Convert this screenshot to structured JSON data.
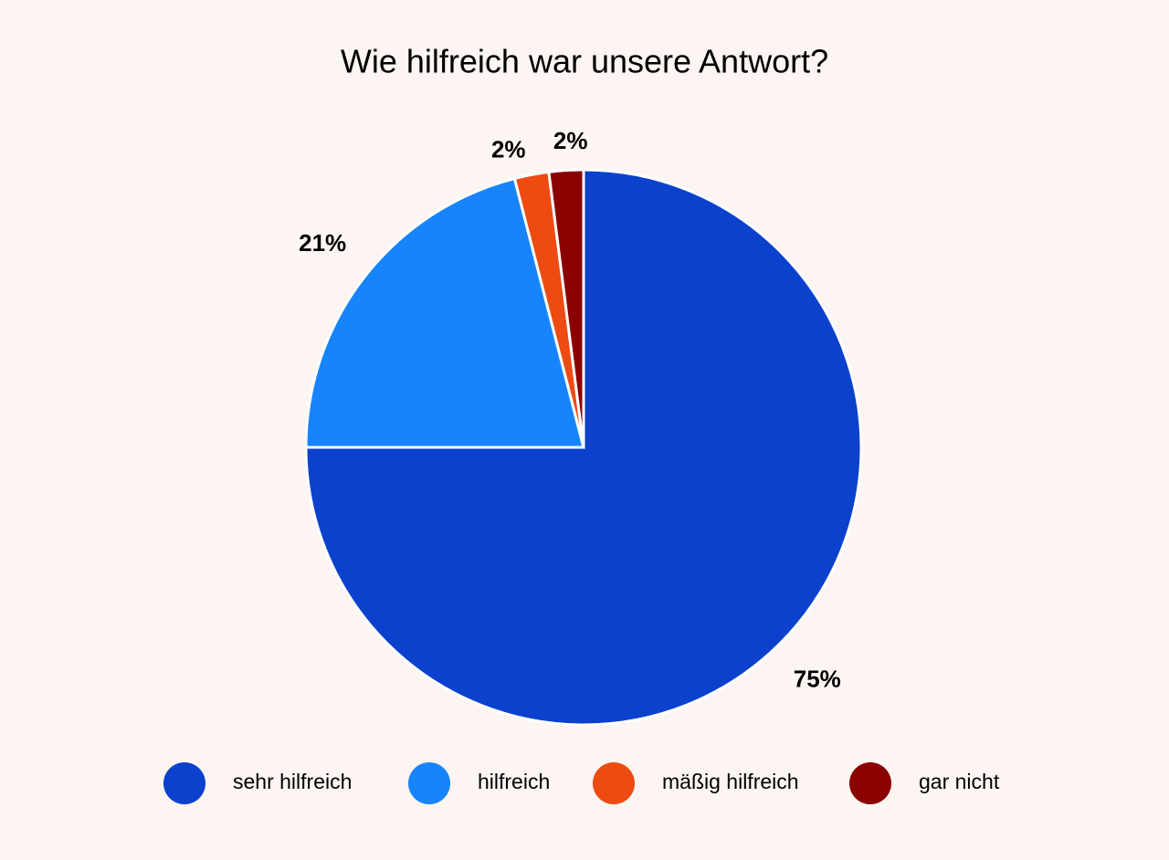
{
  "chart_data": {
    "type": "pie",
    "title": "Wie hilfreich war unsere Antwort?",
    "categories": [
      "sehr hilfreich",
      "hilfreich",
      "mäßig hilfreich",
      "gar nicht"
    ],
    "values": [
      75,
      21,
      2,
      2
    ],
    "value_labels": [
      "75%",
      "21%",
      "2%",
      "2%"
    ],
    "colors": [
      "#0b41cd",
      "#1784fb",
      "#ed4b12",
      "#8b0000"
    ],
    "legend": "bottom"
  }
}
